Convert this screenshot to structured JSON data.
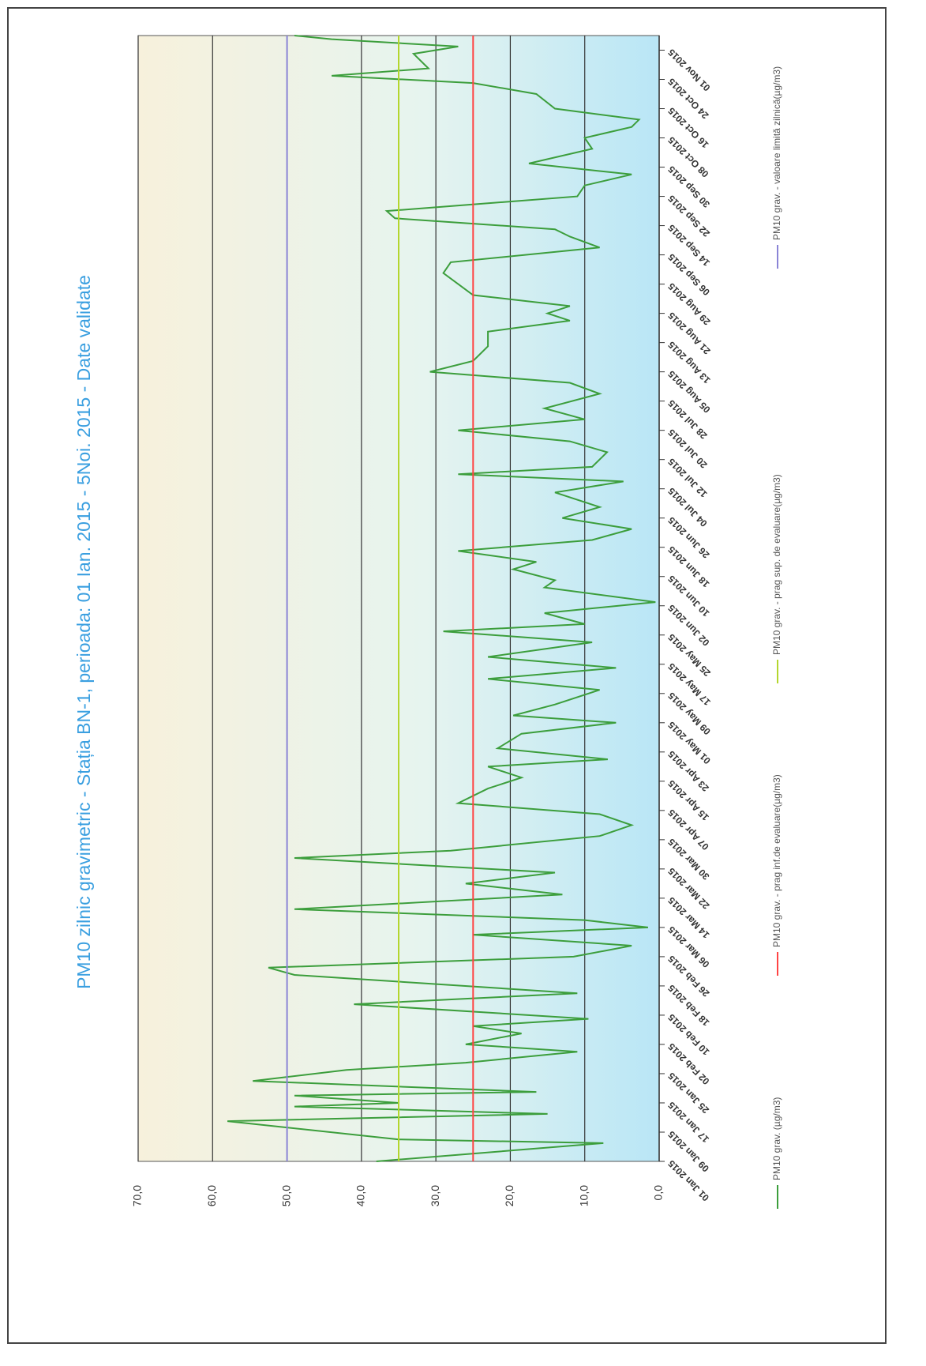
{
  "chart_data": {
    "type": "line",
    "title": "PM10  zilnic  gravimetric - Stația BN-1, perioada: 01 Ian. 2015 - 5Noi. 2015 - Date validate",
    "xlim": [
      0,
      308
    ],
    "ylim": [
      0,
      70
    ],
    "yticks": [
      {
        "value": 0,
        "label": "0,0"
      },
      {
        "value": 10,
        "label": "10,0"
      },
      {
        "value": 20,
        "label": "20,0"
      },
      {
        "value": 30,
        "label": "30,0"
      },
      {
        "value": 40,
        "label": "40,0"
      },
      {
        "value": 50,
        "label": "50,0"
      },
      {
        "value": 60,
        "label": "60,0"
      },
      {
        "value": 70,
        "label": "70,0"
      }
    ],
    "xticks": [
      {
        "value": 0,
        "label": "01 Jan 2015"
      },
      {
        "value": 8,
        "label": "09 Jan 2015"
      },
      {
        "value": 16,
        "label": "17 Jan 2015"
      },
      {
        "value": 24,
        "label": "25 Jan 2015"
      },
      {
        "value": 32,
        "label": "02 Feb 2015"
      },
      {
        "value": 40,
        "label": "10 Feb 2015"
      },
      {
        "value": 48,
        "label": "18 Feb 2015"
      },
      {
        "value": 56,
        "label": "26 Feb 2015"
      },
      {
        "value": 64,
        "label": "06 Mar 2015"
      },
      {
        "value": 72,
        "label": "14 Mar 2015"
      },
      {
        "value": 80,
        "label": "22 Mar 2015"
      },
      {
        "value": 88,
        "label": "30 Mar 2015"
      },
      {
        "value": 96,
        "label": "07 Apr 2015"
      },
      {
        "value": 104,
        "label": "15 Apr 2015"
      },
      {
        "value": 112,
        "label": "23 Apr 2015"
      },
      {
        "value": 120,
        "label": "01 May 2015"
      },
      {
        "value": 128,
        "label": "09 May 2015"
      },
      {
        "value": 136,
        "label": "17 May 2015"
      },
      {
        "value": 144,
        "label": "25 May 2015"
      },
      {
        "value": 152,
        "label": "02 Jun 2015"
      },
      {
        "value": 160,
        "label": "10 Jun 2015"
      },
      {
        "value": 168,
        "label": "18 Jun 2015"
      },
      {
        "value": 176,
        "label": "26 Jun 2015"
      },
      {
        "value": 184,
        "label": "04 Jul 2015"
      },
      {
        "value": 192,
        "label": "12 Jul 2015"
      },
      {
        "value": 200,
        "label": "20 Jul 2015"
      },
      {
        "value": 208,
        "label": "28 Jul 2015"
      },
      {
        "value": 216,
        "label": "05 Aug 2015"
      },
      {
        "value": 224,
        "label": "13 Aug 2015"
      },
      {
        "value": 232,
        "label": "21 Aug 2015"
      },
      {
        "value": 240,
        "label": "29 Aug 2015"
      },
      {
        "value": 248,
        "label": "06 Sep 2015"
      },
      {
        "value": 256,
        "label": "14 Sep 2015"
      },
      {
        "value": 264,
        "label": "22 Sep 2015"
      },
      {
        "value": 272,
        "label": "30 Sep 2015"
      },
      {
        "value": 280,
        "label": "08 Oct 2015"
      },
      {
        "value": 288,
        "label": "16 Oct 2015"
      },
      {
        "value": 296,
        "label": "24 Oct 2015"
      },
      {
        "value": 304,
        "label": "01 Nov 2015"
      }
    ],
    "grid": true,
    "series": [
      {
        "name": "PM10 grav. (µg/m3)",
        "color": "#3c9e3c",
        "x": [
          0,
          5,
          6,
          11,
          13,
          15,
          16,
          18,
          19,
          22,
          25,
          27,
          30,
          32,
          35,
          37,
          39,
          43,
          46,
          51,
          53,
          56,
          59,
          62,
          64,
          66,
          69,
          73,
          76,
          79,
          83,
          85,
          89,
          92,
          95,
          98,
          102,
          105,
          108,
          110,
          113,
          117,
          120,
          122,
          125,
          129,
          132,
          135,
          138,
          142,
          145,
          147,
          150,
          153,
          157,
          159,
          162,
          164,
          167,
          170,
          173,
          176,
          179,
          183,
          186,
          188,
          190,
          194,
          197,
          200,
          203,
          206,
          210,
          213,
          216,
          219,
          223,
          227,
          230,
          232,
          234,
          237,
          240,
          243,
          246,
          250,
          253,
          255,
          258,
          260,
          264,
          267,
          270,
          273,
          277,
          280,
          283,
          285,
          288,
          292,
          295,
          297,
          299,
          303,
          305,
          307,
          308
        ],
        "values": [
          38,
          7.5,
          35,
          58,
          15,
          49,
          35,
          49,
          16.5,
          54.6,
          42,
          26,
          11,
          26,
          18.5,
          25,
          9.5,
          41,
          11,
          49,
          52.5,
          11.5,
          3.7,
          25,
          1.5,
          10,
          49,
          13,
          26,
          14,
          49,
          28,
          8,
          3.7,
          8,
          27,
          23,
          18.5,
          23,
          6.9,
          21.7,
          18.5,
          5.8,
          19.6,
          14,
          8,
          23,
          5.8,
          23,
          9,
          29,
          10,
          15.4,
          0.5,
          15.4,
          14,
          19.6,
          16.5,
          27,
          9,
          3.7,
          13,
          8,
          14,
          4.8,
          27,
          9,
          7,
          12,
          27,
          10,
          15.4,
          8,
          12,
          30.8,
          25,
          23,
          23,
          12,
          15,
          12,
          25,
          27,
          29,
          28,
          8,
          12,
          14,
          35.5,
          36.6,
          11,
          10,
          3.7,
          17.5,
          9,
          10,
          3.7,
          2.7,
          14,
          16.5,
          25,
          44,
          31,
          33,
          27,
          44,
          49
        ]
      },
      {
        "name": "PM10 grav. - prag inf.de evaluare(µg/m3)",
        "color": "#ff4444",
        "x": [
          0,
          308
        ],
        "values": [
          25,
          25
        ]
      },
      {
        "name": "PM10 grav. - prag sup. de evaluare(µg/m3)",
        "color": "#b4d62e",
        "x": [
          0,
          308
        ],
        "values": [
          35,
          35
        ]
      },
      {
        "name": "PM10 grav. - valoare limită zilnică(µg/m3)",
        "color": "#8a84d6",
        "x": [
          0,
          308
        ],
        "values": [
          50,
          50
        ]
      }
    ]
  }
}
